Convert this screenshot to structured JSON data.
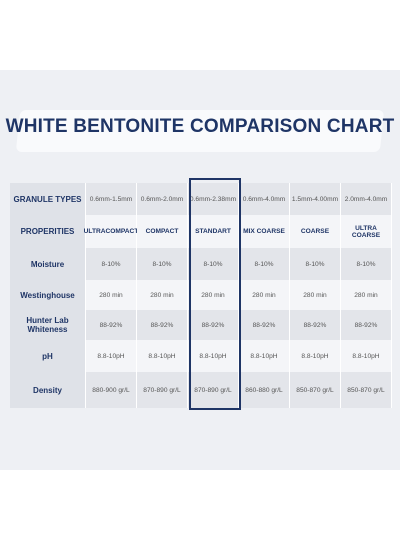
{
  "title": "WHITE BENTONITE COMPARISON CHART",
  "table": {
    "header": [
      "GRANULE TYPES",
      "0.6mm-1.5mm",
      "0.6mm-2.0mm",
      "0.6mm-2.38mm",
      "0.6mm-4.0mm",
      "1.5mm-4.00mm",
      "2.0mm-4.0mm"
    ],
    "rows": [
      [
        "PROPERITIES",
        "ULTRACOMPACT",
        "COMPACT",
        "STANDART",
        "MIX COARSE",
        "COARSE",
        "ULTRA COARSE"
      ],
      [
        "Moisture",
        "8-10%",
        "8-10%",
        "8-10%",
        "8-10%",
        "8-10%",
        "8-10%"
      ],
      [
        "Westinghouse",
        "280 min",
        "280 min",
        "280 min",
        "280 min",
        "280 min",
        "280 min"
      ],
      [
        "Hunter Lab Whiteness",
        "88-92%",
        "88-92%",
        "88-92%",
        "88-92%",
        "88-92%",
        "88-92%"
      ],
      [
        "pH",
        "8.8-10pH",
        "8.8-10pH",
        "8.8-10pH",
        "8.8-10pH",
        "8.8-10pH",
        "8.8-10pH"
      ],
      [
        "Density",
        "880-900 gr/L",
        "870-890 gr/L",
        "870-890 gr/L",
        "860-880 gr/L",
        "850-870 gr/L",
        "850-870 gr/L"
      ]
    ]
  }
}
